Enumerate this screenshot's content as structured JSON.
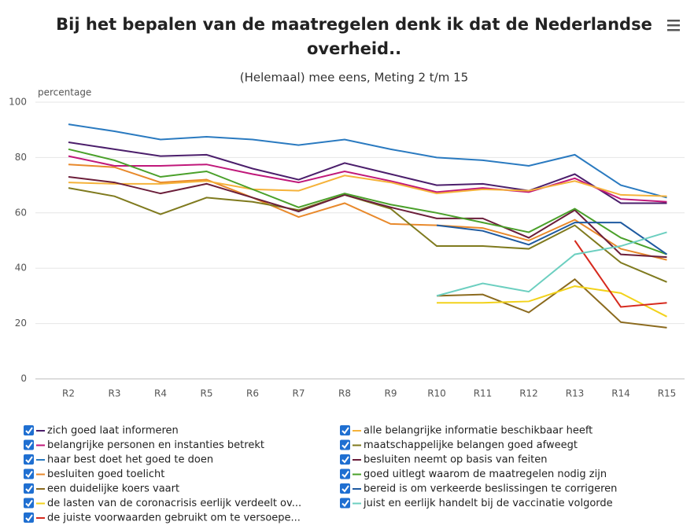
{
  "chart_data": {
    "type": "line",
    "title": [
      "Bij het bepalen van de maatregelen denk ik dat de Nederlandse",
      "overheid.."
    ],
    "subtitle": "(Helemaal) mee eens, Meting 2 t/m 15",
    "y_label": "percentage",
    "categories": [
      "R2",
      "R3",
      "R4",
      "R5",
      "R6",
      "R7",
      "R8",
      "R9",
      "R10",
      "R11",
      "R12",
      "R13",
      "R14",
      "R15"
    ],
    "ylim": [
      0,
      100
    ],
    "yticks": [
      0,
      20,
      40,
      60,
      80,
      100
    ],
    "grid": true,
    "series": [
      {
        "name": "zich goed laat informeren",
        "color": "#4b1e6b",
        "values": [
          85.5,
          83,
          80.5,
          81,
          76,
          72,
          78,
          74,
          70,
          70.5,
          68,
          74,
          63.5,
          63.5
        ]
      },
      {
        "name": "belangrijke personen en instanties betrekt",
        "color": "#c0187a",
        "values": [
          80.5,
          77,
          77,
          77.5,
          74,
          71,
          75,
          71.5,
          67.5,
          69,
          67.5,
          72.5,
          65,
          64
        ]
      },
      {
        "name": "haar best doet het goed te doen",
        "color": "#2a7ac0",
        "values": [
          92,
          89.5,
          86.5,
          87.5,
          86.5,
          84.5,
          86.5,
          83,
          80,
          79,
          77,
          81,
          70,
          65.5
        ]
      },
      {
        "name": "besluiten goed toelicht",
        "color": "#e8892b",
        "values": [
          77.5,
          76.5,
          71,
          72,
          65.5,
          58.5,
          63.5,
          56,
          55.5,
          54.5,
          50,
          57.5,
          47,
          43
        ]
      },
      {
        "name": "een duidelijke koers vaart",
        "color": "#8b6a1e",
        "values": [
          null,
          null,
          null,
          null,
          null,
          null,
          null,
          null,
          30,
          30.5,
          24,
          36,
          20.5,
          18.5
        ]
      },
      {
        "name": "de lasten van de coronacrisis eerlijk verdeelt ov...",
        "color": "#f2d21b",
        "values": [
          null,
          null,
          null,
          null,
          null,
          null,
          null,
          null,
          27.5,
          27.5,
          28,
          33.5,
          31,
          22.5
        ]
      },
      {
        "name": "de juiste voorwaarden gebruikt om te versoepe...",
        "color": "#d62a1e",
        "values": [
          null,
          null,
          null,
          null,
          null,
          null,
          null,
          null,
          null,
          null,
          null,
          50,
          26,
          27.5
        ]
      },
      {
        "name": "alle belangrijke informatie beschikbaar heeft",
        "color": "#f5b23a",
        "values": [
          71,
          70.5,
          70.5,
          71.5,
          68.5,
          68,
          73.5,
          71,
          67,
          68.5,
          68,
          71.5,
          66.5,
          66
        ]
      },
      {
        "name": "maatschappelijke belangen goed afweegt",
        "color": "#7f7a1e",
        "values": [
          69,
          66,
          59.5,
          65.5,
          64,
          61,
          66.5,
          61.5,
          48,
          48,
          47,
          55.5,
          42,
          35
        ]
      },
      {
        "name": "besluiten neemt op basis van feiten",
        "color": "#6b1e3a",
        "values": [
          73,
          71,
          67,
          70.5,
          65.5,
          60.5,
          66.5,
          62,
          58,
          58,
          51,
          61,
          45,
          44
        ]
      },
      {
        "name": "goed uitlegt waarom de maatregelen nodig zijn",
        "color": "#4aa02a",
        "values": [
          83,
          79,
          73,
          75,
          68.5,
          62,
          67,
          63,
          60,
          56.5,
          53,
          61.5,
          51,
          45
        ]
      },
      {
        "name": "bereid is om verkeerde beslissingen te corrigeren",
        "color": "#1e5aa0",
        "values": [
          null,
          null,
          null,
          null,
          null,
          null,
          null,
          null,
          55.5,
          53.5,
          48.5,
          56.5,
          56.5,
          45
        ]
      },
      {
        "name": "juist en eerlijk handelt bij de vaccinatie volgorde",
        "color": "#6ccfc0",
        "values": [
          null,
          null,
          null,
          null,
          null,
          null,
          null,
          null,
          30,
          34.5,
          31.5,
          45,
          48,
          53
        ]
      }
    ]
  }
}
